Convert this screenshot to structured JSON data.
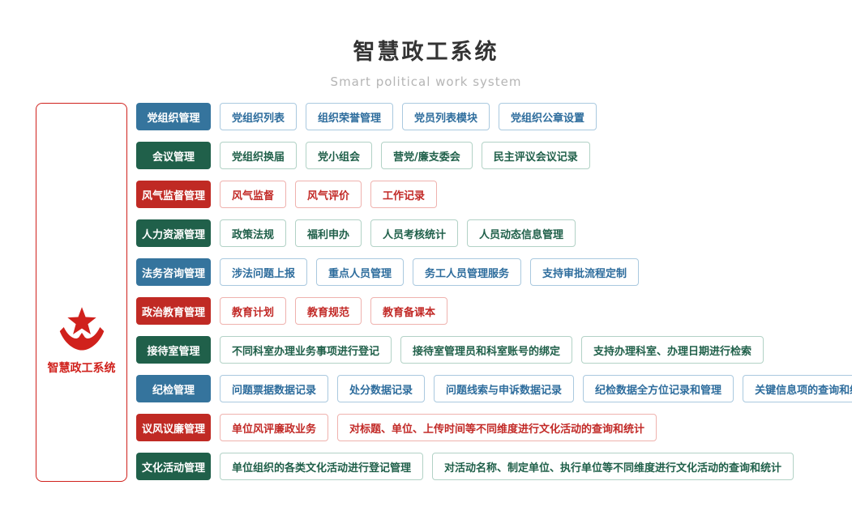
{
  "header": {
    "title": "智慧政工系统",
    "subtitle": "Smart political work system"
  },
  "system_box": {
    "label": "智慧政工系统",
    "icon": "star-banner-icon"
  },
  "colors": {
    "title_text": "#333333",
    "subtitle_text": "#b5b5b5",
    "system_box_red": "#d0211c",
    "blue": {
      "fill": "#35749d",
      "text": "#2e6d9d",
      "border": "#aac9df"
    },
    "green": {
      "fill": "#20604a",
      "text": "#20604a",
      "border": "#b2d2c6"
    },
    "red": {
      "fill": "#c02a24",
      "text": "#c22a27",
      "border": "#efb2ae"
    }
  },
  "rows": [
    {
      "color": "blue",
      "category": "党组织管理",
      "items": [
        "党组织列表",
        "组织荣誉管理",
        "党员列表模块",
        "党组织公章设置"
      ]
    },
    {
      "color": "green",
      "category": "会议管理",
      "items": [
        "党组织换届",
        "党小组会",
        "营党/廉支委会",
        "民主评议会议记录"
      ]
    },
    {
      "color": "red",
      "category": "风气监督管理",
      "items": [
        "风气监督",
        "风气评价",
        "工作记录"
      ]
    },
    {
      "color": "green",
      "category": "人力资源管理",
      "items": [
        "政策法规",
        "福利申办",
        "人员考核统计",
        "人员动态信息管理"
      ]
    },
    {
      "color": "blue",
      "category": "法务咨询管理",
      "items": [
        "涉法问题上报",
        "重点人员管理",
        "务工人员管理服务",
        "支持审批流程定制"
      ]
    },
    {
      "color": "red",
      "category": "政治教育管理",
      "items": [
        "教育计划",
        "教育规范",
        "教育备课本"
      ]
    },
    {
      "color": "green",
      "category": "接待室管理",
      "items": [
        "不同科室办理业务事项进行登记",
        "接待室管理员和科室账号的绑定",
        "支持办理科室、办理日期进行检索"
      ]
    },
    {
      "color": "blue",
      "category": "纪检管理",
      "items": [
        "问题票据数据记录",
        "处分数据记录",
        "问题线索与申诉数据记录",
        "纪检数据全方位记录和管理",
        "关键信息项的查询和统计"
      ]
    },
    {
      "color": "red",
      "category": "议风议廉管理",
      "items": [
        "单位风评廉政业务",
        "对标题、单位、上传时间等不同维度进行文化活动的查询和统计"
      ]
    },
    {
      "color": "green",
      "category": "文化活动管理",
      "items": [
        "单位组织的各类文化活动进行登记管理",
        "对活动名称、制定单位、执行单位等不同维度进行文化活动的查询和统计"
      ]
    }
  ]
}
